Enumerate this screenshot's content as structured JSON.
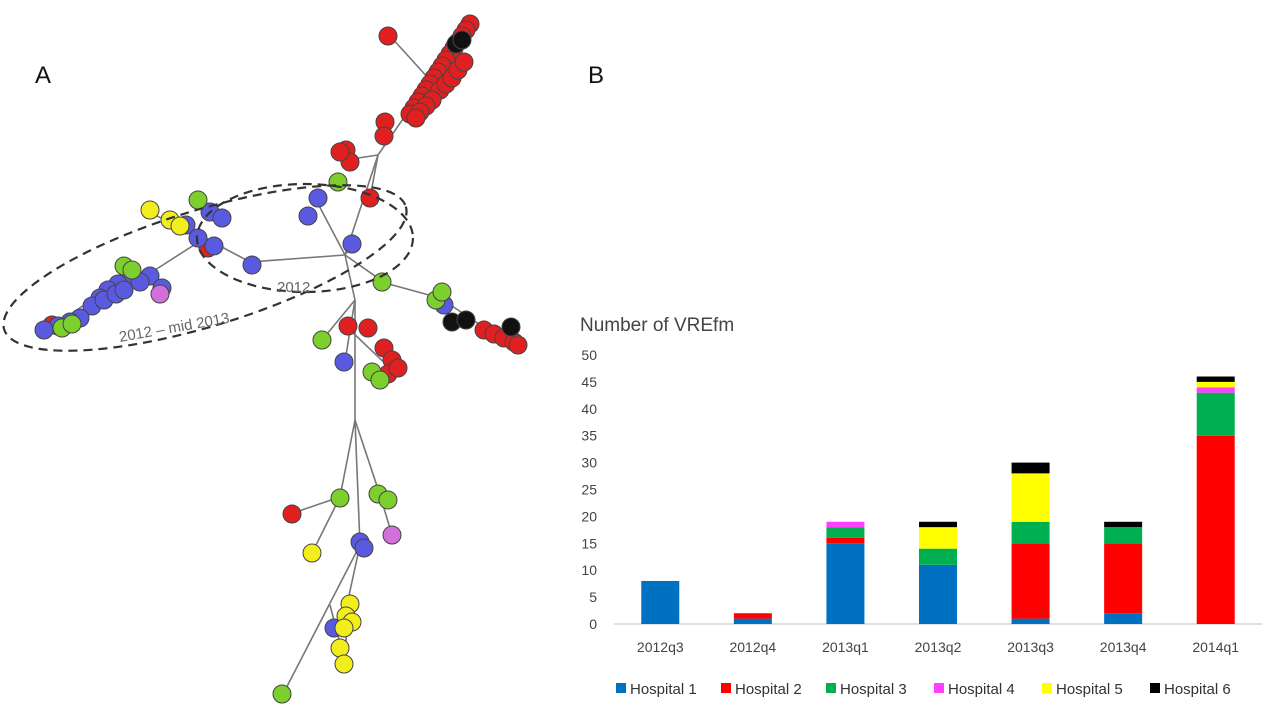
{
  "panels": {
    "a_label": "A",
    "b_label": "B"
  },
  "tree": {
    "cluster_labels": [
      "2012",
      "2012 – mid 2013"
    ]
  },
  "colors": {
    "Hospital 1": "#0070c0",
    "Hospital 2": "#ff0000",
    "Hospital 3": "#00b050",
    "Hospital 4": "#ff40ff",
    "Hospital 5": "#ffff00",
    "Hospital 6": "#000000",
    "tree_blue": "#5a5ae0",
    "tree_red": "#e02020",
    "tree_green": "#7ccf2c",
    "tree_yellow": "#f2ee1c",
    "tree_magenta": "#d070d8",
    "tree_black": "#111111"
  },
  "chart_data": {
    "type": "bar",
    "stacked": true,
    "ylabel": "Number of VREfm",
    "ylim": [
      0,
      50
    ],
    "yticks": [
      0,
      5,
      10,
      15,
      20,
      25,
      30,
      35,
      40,
      45,
      50
    ],
    "categories": [
      "2012q3",
      "2012q4",
      "2013q1",
      "2013q2",
      "2013q3",
      "2013q4",
      "2014q1"
    ],
    "series": [
      {
        "name": "Hospital 1",
        "values": [
          8,
          1,
          15,
          11,
          1,
          2,
          0
        ]
      },
      {
        "name": "Hospital 2",
        "values": [
          0,
          1,
          1,
          0,
          14,
          13,
          35
        ]
      },
      {
        "name": "Hospital 3",
        "values": [
          0,
          0,
          2,
          3,
          4,
          3,
          8
        ]
      },
      {
        "name": "Hospital 4",
        "values": [
          0,
          0,
          1,
          0,
          0,
          0,
          1
        ]
      },
      {
        "name": "Hospital 5",
        "values": [
          0,
          0,
          0,
          4,
          9,
          0,
          1
        ]
      },
      {
        "name": "Hospital 6",
        "values": [
          0,
          0,
          0,
          1,
          2,
          1,
          1
        ]
      }
    ],
    "grid": false,
    "legend_position": "bottom"
  }
}
